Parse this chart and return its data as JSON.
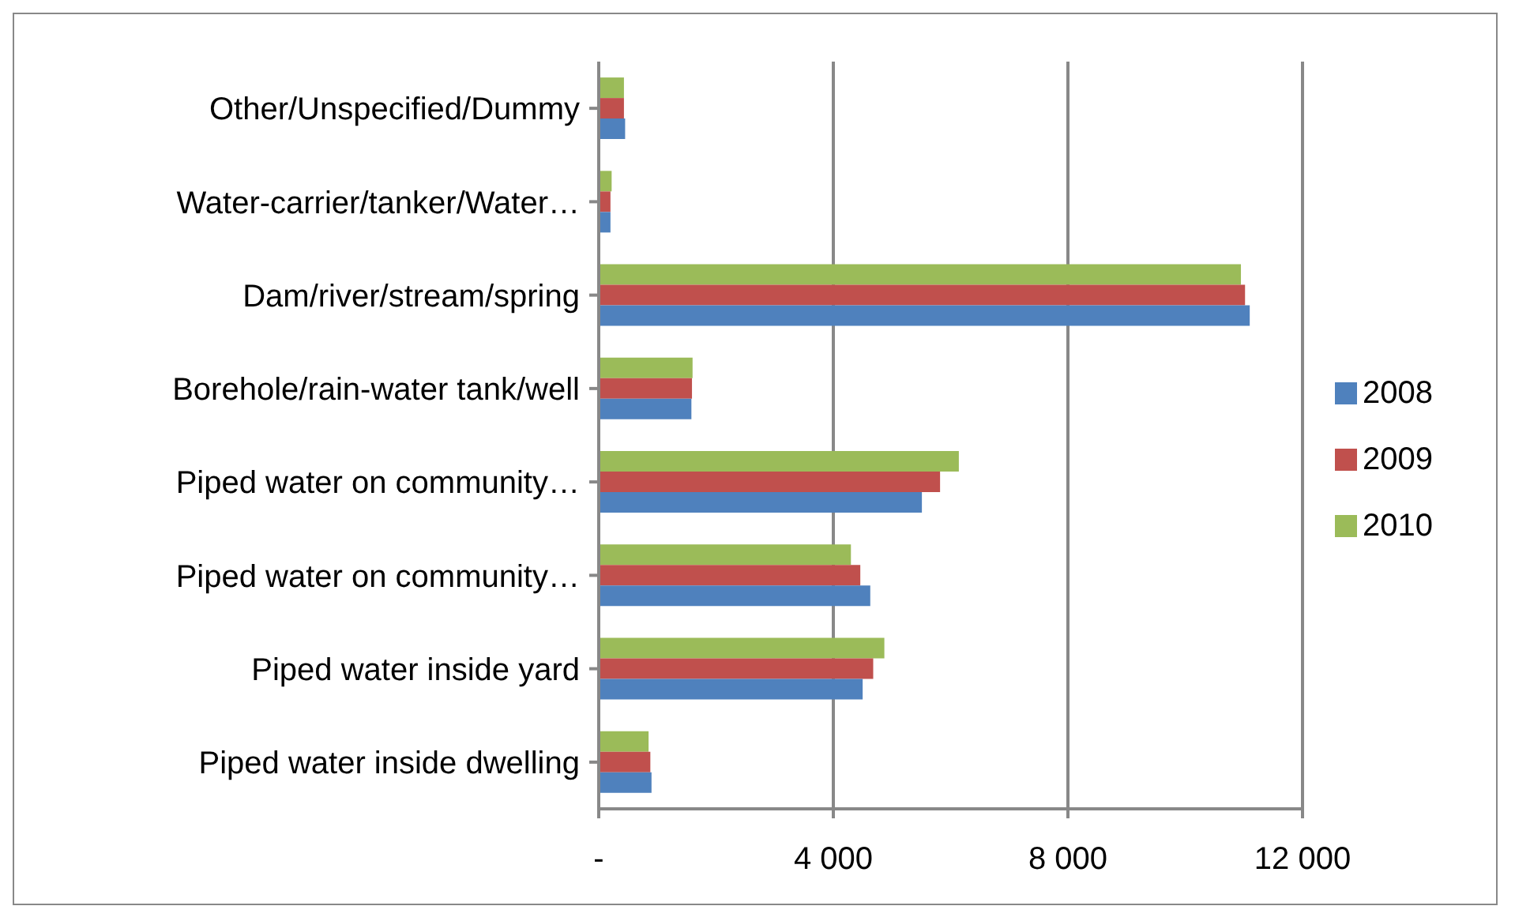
{
  "chart_data": {
    "type": "bar",
    "orientation": "horizontal",
    "categories": [
      "Other/Unspecified/Dummy",
      "Water-carrier/tanker/Water…",
      "Dam/river/stream/spring",
      "Borehole/rain-water tank/well",
      "Piped water on community…",
      "Piped water on community…",
      "Piped water inside yard",
      "Piped water inside dwelling"
    ],
    "series": [
      {
        "name": "2010",
        "color": "#9bbb59",
        "values": [
          430,
          220,
          10950,
          1600,
          6140,
          4300,
          4870,
          850
        ]
      },
      {
        "name": "2009",
        "color": "#c0504d",
        "values": [
          430,
          200,
          11020,
          1590,
          5820,
          4460,
          4680,
          880
        ]
      },
      {
        "name": "2008",
        "color": "#4f81bd",
        "values": [
          450,
          200,
          11100,
          1580,
          5510,
          4630,
          4500,
          900
        ]
      }
    ],
    "xlim": [
      0,
      12000
    ],
    "xticks": [
      {
        "value": 0,
        "label": "-"
      },
      {
        "value": 4000,
        "label": "4 000"
      },
      {
        "value": 8000,
        "label": "8 000"
      },
      {
        "value": 12000,
        "label": "12 000"
      }
    ],
    "grid": "x",
    "legend": "right"
  }
}
